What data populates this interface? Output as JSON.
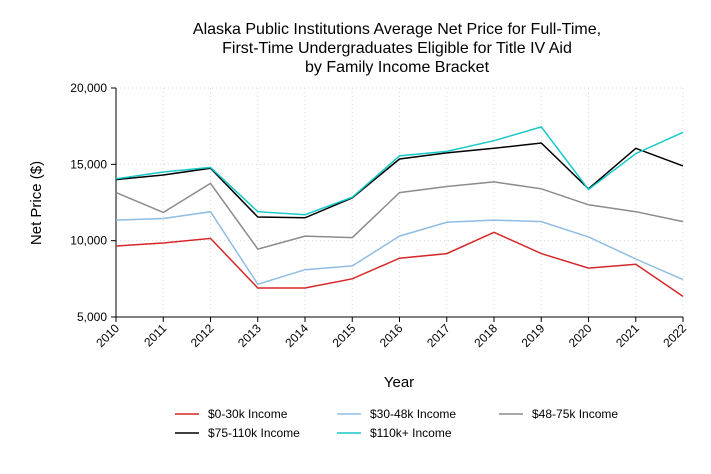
{
  "chart_data": {
    "type": "line",
    "title_lines": [
      "Alaska Public Institutions Average Net Price for Full-Time,",
      "First-Time Undergraduates Eligible for Title IV Aid",
      "by Family Income Bracket"
    ],
    "xlabel": "Year",
    "ylabel": "Net Price ($)",
    "x": [
      "2010",
      "2011",
      "2012",
      "2013",
      "2014",
      "2015",
      "2016",
      "2017",
      "2018",
      "2019",
      "2020",
      "2021",
      "2022"
    ],
    "y_ticks": [
      "5,000",
      "10,000",
      "15,000",
      "20,000"
    ],
    "y_tick_values": [
      5000,
      10000,
      15000,
      20000
    ],
    "ylim": [
      5000,
      20000
    ],
    "grid": true,
    "legend_position": "bottom",
    "series": [
      {
        "name": "$0-30k Income",
        "color": "#d62728",
        "values": [
          9650,
          9850,
          10150,
          6900,
          6900,
          7500,
          8850,
          9150,
          10550,
          9150,
          8200,
          8450,
          6350
        ]
      },
      {
        "name": "$30-48k Income",
        "color": "#8fbde3",
        "values": [
          11350,
          11450,
          11900,
          7150,
          8100,
          8350,
          10300,
          11200,
          11350,
          11250,
          10250,
          8800,
          7450
        ]
      },
      {
        "name": "$48-75k Income",
        "color": "#8c8c8c",
        "values": [
          13150,
          11850,
          13750,
          9450,
          10300,
          10200,
          13150,
          13550,
          13850,
          13400,
          12350,
          11900,
          11250
        ]
      },
      {
        "name": "$75-110k Income",
        "color": "#000000",
        "values": [
          14000,
          14300,
          14750,
          11550,
          11500,
          12800,
          15350,
          15750,
          16050,
          16400,
          13400,
          16050,
          14900
        ]
      },
      {
        "name": "$110k+ Income",
        "color": "#17c9c9",
        "values": [
          14050,
          14500,
          14800,
          11900,
          11700,
          12850,
          15550,
          15850,
          16550,
          17450,
          13350,
          15700,
          17100
        ]
      }
    ]
  }
}
